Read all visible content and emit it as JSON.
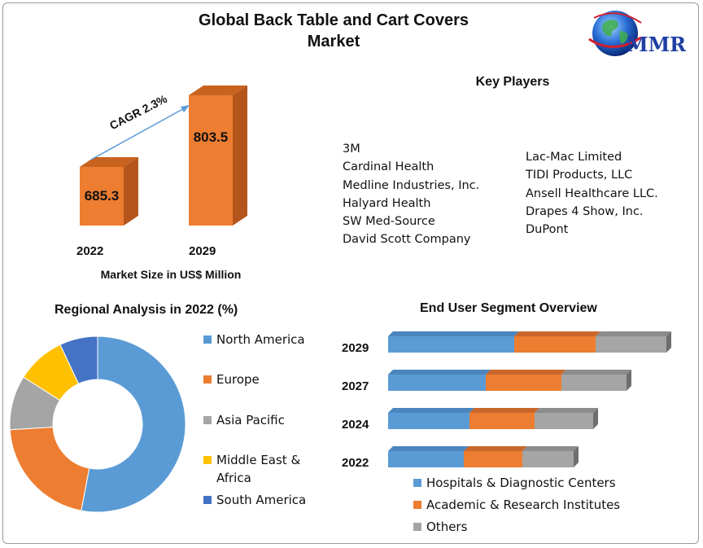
{
  "title": "Global Back Table and Cart Covers Market",
  "title_lines": [
    "Global Back Table and Cart Covers",
    "Market"
  ],
  "logo": {
    "text": "MMR",
    "icon": "globe-icon"
  },
  "market_size": {
    "caption": "Market Size in US$ Million",
    "cagr_label": "CAGR 2.3%",
    "years": [
      "2022",
      "2029"
    ],
    "values": [
      "685.3",
      "803.5"
    ]
  },
  "key_players": {
    "title": "Key Players",
    "col1": [
      "3M",
      "Cardinal Health",
      "Medline Industries, Inc.",
      "Halyard Health",
      "SW Med-Source",
      "David Scott Company"
    ],
    "col2": [
      "Lac-Mac Limited",
      "TIDI Products, LLC",
      "Ansell Healthcare LLC.",
      "Drapes 4 Show, Inc.",
      "DuPont"
    ]
  },
  "regional": {
    "title": "Regional Analysis in 2022 (%)",
    "legend": [
      "North America",
      "Europe",
      "Asia Pacific",
      "Middle East &",
      "Africa",
      "South America"
    ]
  },
  "end_user": {
    "title": "End User Segment Overview",
    "legend": [
      "Hospitals & Diagnostic Centers",
      "Academic & Research Institutes",
      "Others"
    ]
  },
  "colors": {
    "orange": "#ED7D31",
    "orange_dark": "#B4561C",
    "blue": "#5B9BD5",
    "gray": "#A5A5A5",
    "yellow": "#FFC000",
    "dark_blue": "#4472C4"
  },
  "chart_data": [
    {
      "type": "bar",
      "title": "",
      "categories": [
        "2022",
        "2029"
      ],
      "values": [
        685.3,
        803.5
      ],
      "xlabel": "Market Size in US$ Million",
      "ylabel": "",
      "annotation": "CAGR 2.3%",
      "ylim": [
        0,
        900
      ]
    },
    {
      "type": "pie",
      "title": "Regional Analysis in 2022 (%)",
      "donut": true,
      "labels": [
        "North America",
        "Europe",
        "Asia Pacific",
        "Middle East & Africa",
        "South America"
      ],
      "values": [
        53,
        21,
        10,
        9,
        7
      ]
    },
    {
      "type": "bar",
      "orientation": "horizontal",
      "stacked": true,
      "title": "End User Segment Overview",
      "categories": [
        "2029",
        "2027",
        "2024",
        "2022"
      ],
      "series": [
        {
          "name": "Hospitals & Diagnostic Centers",
          "values": [
            155,
            120,
            100,
            93
          ]
        },
        {
          "name": "Academic & Research Institutes",
          "values": [
            100,
            93,
            80,
            72
          ]
        },
        {
          "name": "Others",
          "values": [
            87,
            80,
            72,
            63
          ]
        }
      ]
    }
  ]
}
